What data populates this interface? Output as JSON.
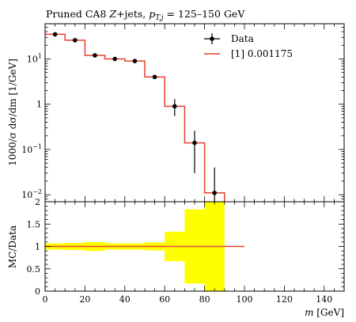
{
  "chart_data": [
    {
      "type": "line",
      "title": "Pruned CA8 Z+jets, p_T,j = 125–150 GeV",
      "title_parts": {
        "prefix": "Pruned CA8 ",
        "z": "Z",
        "mid": "+jets, ",
        "p": "p",
        "sub": "T,j",
        "suffix": " = 125–150 GeV"
      },
      "ylabel": "1000/σ dσ/dm [1/GeV]",
      "xlabel": "m [GeV]",
      "xlim": [
        0,
        150
      ],
      "ylim": [
        0.007,
        60
      ],
      "yscale": "log",
      "x_ticks": [
        0,
        20,
        40,
        60,
        80,
        100,
        120,
        140
      ],
      "y_ticks": [
        {
          "value": 0.01,
          "base": "10",
          "exp": "−2"
        },
        {
          "value": 0.1,
          "base": "10",
          "exp": "−1"
        },
        {
          "value": 1,
          "base": "1",
          "exp": ""
        },
        {
          "value": 10,
          "base": "10",
          "exp": "1"
        }
      ],
      "legend": {
        "position": "top-right",
        "entries": [
          "Data",
          "[1] 0.001175"
        ]
      },
      "series": [
        {
          "name": "Data",
          "style": "points-with-errorbars",
          "color": "#000000",
          "points": [
            {
              "x": 5,
              "y": 35,
              "y_low": 34,
              "y_high": 36
            },
            {
              "x": 15,
              "y": 26,
              "y_low": 25,
              "y_high": 27
            },
            {
              "x": 25,
              "y": 12,
              "y_low": 11.5,
              "y_high": 12.5
            },
            {
              "x": 35,
              "y": 10,
              "y_low": 9.6,
              "y_high": 10.4
            },
            {
              "x": 45,
              "y": 9,
              "y_low": 8.6,
              "y_high": 9.4
            },
            {
              "x": 55,
              "y": 4,
              "y_low": 3.7,
              "y_high": 4.3
            },
            {
              "x": 65,
              "y": 0.9,
              "y_low": 0.55,
              "y_high": 1.3
            },
            {
              "x": 75,
              "y": 0.14,
              "y_low": 0.03,
              "y_high": 0.26
            },
            {
              "x": 85,
              "y": 0.011,
              "y_low": 0.003,
              "y_high": 0.04
            }
          ]
        },
        {
          "name": "[1] 0.001175",
          "style": "step-histogram",
          "color": "#e8412c",
          "bins": [
            {
              "x_low": 0,
              "x_high": 10,
              "y": 35
            },
            {
              "x_low": 10,
              "x_high": 20,
              "y": 26
            },
            {
              "x_low": 20,
              "x_high": 30,
              "y": 12
            },
            {
              "x_low": 30,
              "x_high": 40,
              "y": 10
            },
            {
              "x_low": 40,
              "x_high": 50,
              "y": 9
            },
            {
              "x_low": 50,
              "x_high": 60,
              "y": 4
            },
            {
              "x_low": 60,
              "x_high": 70,
              "y": 0.9
            },
            {
              "x_low": 70,
              "x_high": 80,
              "y": 0.14
            },
            {
              "x_low": 80,
              "x_high": 90,
              "y": 0.011
            }
          ]
        }
      ]
    },
    {
      "type": "line",
      "title": "",
      "ylabel": "MC/Data",
      "xlabel": "m [GeV]",
      "xlim": [
        0,
        150
      ],
      "ylim": [
        0,
        2
      ],
      "x_ticks": [
        0,
        20,
        40,
        60,
        80,
        100,
        120,
        140
      ],
      "y_ticks": [
        {
          "value": 0,
          "label": "0"
        },
        {
          "value": 0.5,
          "label": "0.5"
        },
        {
          "value": 1,
          "label": "1"
        },
        {
          "value": 1.5,
          "label": "1.5"
        },
        {
          "value": 2,
          "label": "2"
        }
      ],
      "band_color": "#ffff00",
      "band": [
        {
          "x_low": 0,
          "x_high": 10,
          "low": 0.93,
          "high": 1.07
        },
        {
          "x_low": 10,
          "x_high": 20,
          "low": 0.92,
          "high": 1.08
        },
        {
          "x_low": 20,
          "x_high": 30,
          "low": 0.9,
          "high": 1.1
        },
        {
          "x_low": 30,
          "x_high": 40,
          "low": 0.93,
          "high": 1.07
        },
        {
          "x_low": 40,
          "x_high": 50,
          "low": 0.93,
          "high": 1.07
        },
        {
          "x_low": 50,
          "x_high": 60,
          "low": 0.91,
          "high": 1.09
        },
        {
          "x_low": 60,
          "x_high": 70,
          "low": 0.67,
          "high": 1.33
        },
        {
          "x_low": 70,
          "x_high": 80,
          "low": 0.17,
          "high": 1.83
        },
        {
          "x_low": 80,
          "x_high": 90,
          "low": 0,
          "high": 2
        }
      ],
      "series": [
        {
          "name": "[1] 0.001175",
          "color": "#e8412c",
          "x": [
            0,
            100
          ],
          "values": [
            1,
            1
          ]
        }
      ]
    }
  ]
}
